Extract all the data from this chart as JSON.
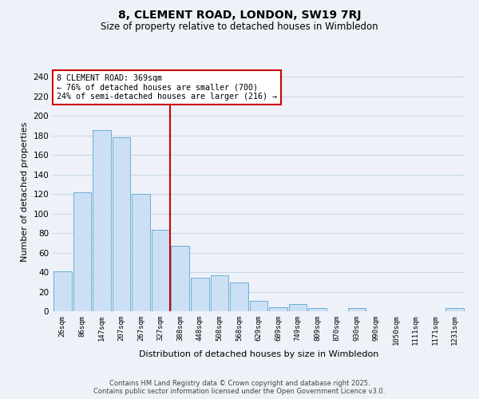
{
  "title": "8, CLEMENT ROAD, LONDON, SW19 7RJ",
  "subtitle": "Size of property relative to detached houses in Wimbledon",
  "xlabel": "Distribution of detached houses by size in Wimbledon",
  "ylabel": "Number of detached properties",
  "categories": [
    "26sqm",
    "86sqm",
    "147sqm",
    "207sqm",
    "267sqm",
    "327sqm",
    "388sqm",
    "448sqm",
    "508sqm",
    "568sqm",
    "629sqm",
    "689sqm",
    "749sqm",
    "809sqm",
    "870sqm",
    "930sqm",
    "990sqm",
    "1050sqm",
    "1111sqm",
    "1171sqm",
    "1231sqm"
  ],
  "values": [
    41,
    122,
    185,
    178,
    120,
    83,
    67,
    34,
    37,
    29,
    11,
    4,
    7,
    3,
    0,
    3,
    0,
    0,
    0,
    0,
    3
  ],
  "bar_color": "#cce0f5",
  "bar_edge_color": "#6aaed6",
  "grid_color": "#c8d8ea",
  "bg_color": "#eef2f8",
  "redline_x": 5.5,
  "annotation_text": "8 CLEMENT ROAD: 369sqm\n← 76% of detached houses are smaller (700)\n24% of semi-detached houses are larger (216) →",
  "annotation_box_color": "#ffffff",
  "annotation_box_edge": "#cc0000",
  "redline_color": "#cc0000",
  "footer1": "Contains HM Land Registry data © Crown copyright and database right 2025.",
  "footer2": "Contains public sector information licensed under the Open Government Licence v3.0.",
  "ylim": [
    0,
    245
  ],
  "yticks": [
    0,
    20,
    40,
    60,
    80,
    100,
    120,
    140,
    160,
    180,
    200,
    220,
    240
  ]
}
